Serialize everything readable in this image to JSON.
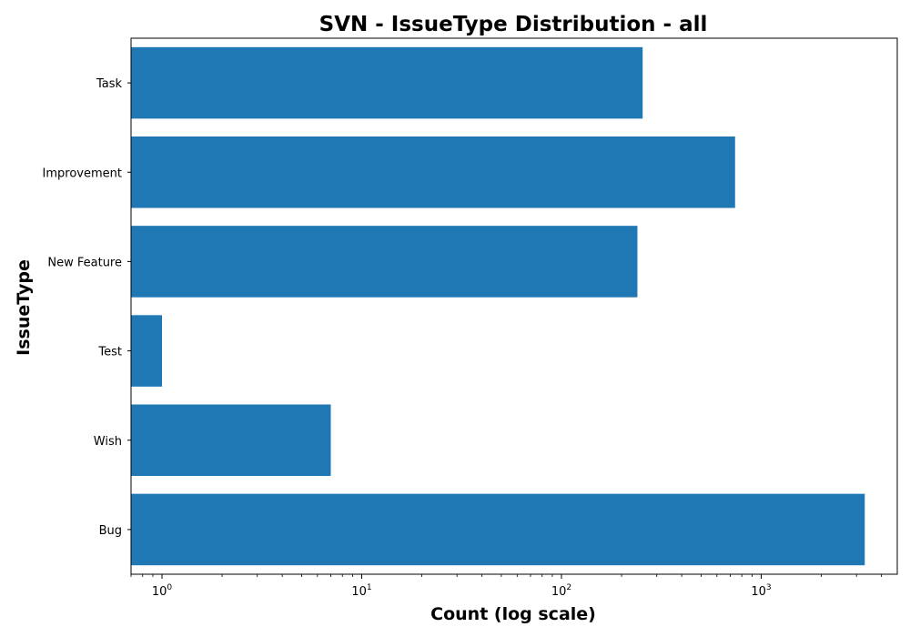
{
  "chart_data": {
    "type": "bar",
    "orientation": "horizontal",
    "title": "SVN - IssueType Distribution - all",
    "xlabel": "Count (log scale)",
    "ylabel": "IssueType",
    "xscale": "log",
    "xlim": [
      0.7,
      4800
    ],
    "categories": [
      "Bug",
      "Wish",
      "Test",
      "New Feature",
      "Improvement",
      "Task"
    ],
    "values": [
      3300,
      7,
      1,
      240,
      740,
      255
    ],
    "xticks": [
      {
        "base": "10",
        "exp": "0",
        "value": 1
      },
      {
        "base": "10",
        "exp": "1",
        "value": 10
      },
      {
        "base": "10",
        "exp": "2",
        "value": 100
      },
      {
        "base": "10",
        "exp": "3",
        "value": 1000
      }
    ],
    "bar_color": "#1f77b4",
    "grid": false,
    "legend": "none"
  }
}
